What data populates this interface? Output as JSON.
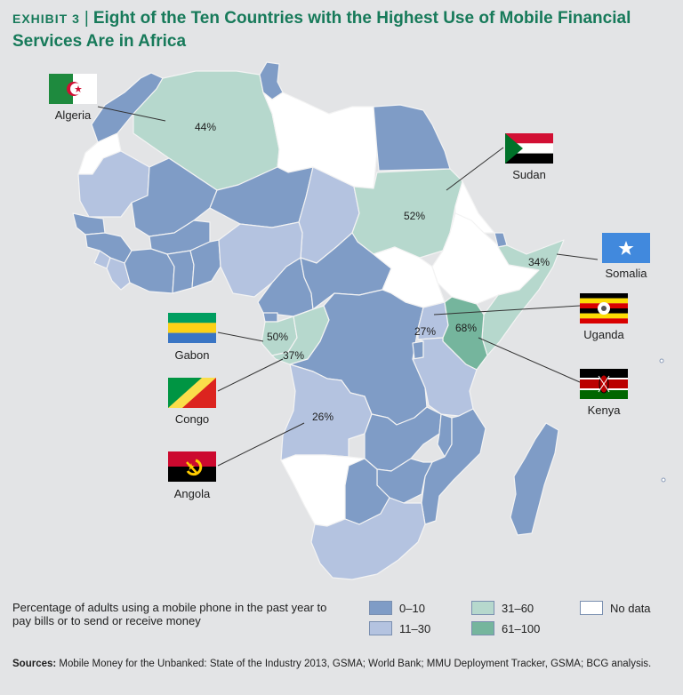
{
  "header": {
    "exhibit": "EXHIBIT 3",
    "separator": "|",
    "title": "Eight of the Ten Countries with the Highest Use of Mobile Financial Services Are in Africa"
  },
  "colors": {
    "bin_0_10": "#7f9cc6",
    "bin_11_30": "#b4c3e0",
    "bin_31_60": "#b6d8cd",
    "bin_61_100": "#75b59d",
    "no_data": "#ffffff",
    "title": "#177a5a"
  },
  "countries": [
    {
      "name": "Algeria",
      "value": "44%"
    },
    {
      "name": "Sudan",
      "value": "52%"
    },
    {
      "name": "Somalia",
      "value": "34%"
    },
    {
      "name": "Uganda",
      "value": "27%"
    },
    {
      "name": "Kenya",
      "value": "68%"
    },
    {
      "name": "Gabon",
      "value": "50%"
    },
    {
      "name": "Congo",
      "value": "37%"
    },
    {
      "name": "Angola",
      "value": "26%"
    }
  ],
  "legend": {
    "description": "Percentage of adults using a mobile phone in the past year to pay bills or to send or receive money",
    "items": [
      {
        "label": "0–10",
        "color": "#7f9cc6"
      },
      {
        "label": "31–60",
        "color": "#b6d8cd"
      },
      {
        "label": "No data",
        "color": "#ffffff"
      },
      {
        "label": "11–30",
        "color": "#b4c3e0"
      },
      {
        "label": "61–100",
        "color": "#75b59d"
      }
    ]
  },
  "sources": {
    "label": "Sources:",
    "text": "Mobile Money for the Unbanked: State of the Industry 2013, GSMA; World Bank; MMU Deployment Tracker, GSMA; BCG analysis."
  }
}
